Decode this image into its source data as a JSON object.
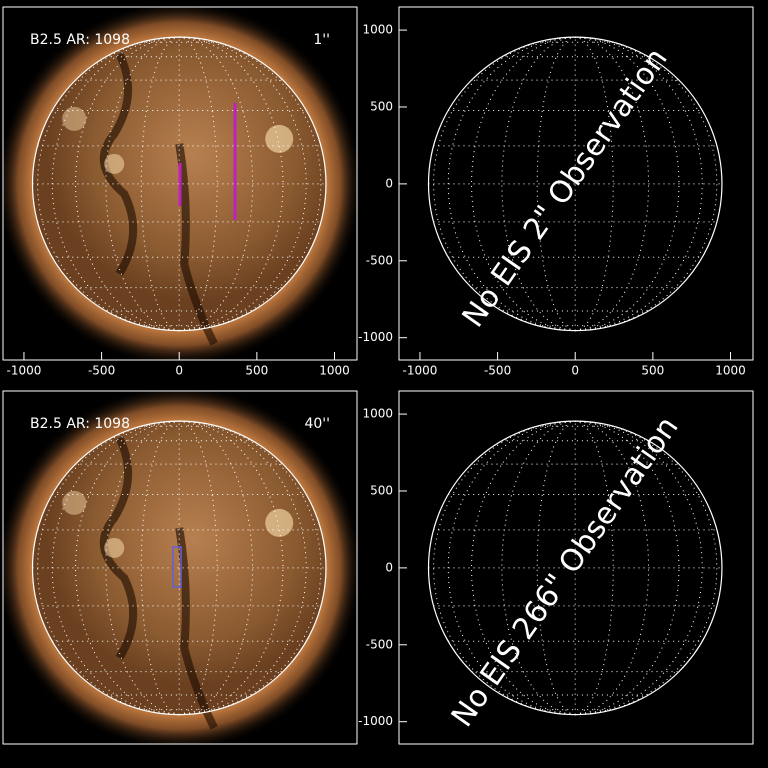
{
  "chart_data": [
    {
      "type": "map",
      "sun_image": true,
      "labels": [
        "B2.5 AR: 1098",
        "1''"
      ],
      "label_colors": [
        "#b0b0b0",
        "#b020b0"
      ],
      "xlim": [
        -1135,
        1145
      ],
      "ylim": [
        -1145,
        1150
      ],
      "xticks": [
        -1000,
        -500,
        0,
        500,
        1000
      ]
    },
    {
      "type": "map",
      "sun_image": false,
      "annotation": "No EIS 2\" Observation",
      "xlim": [
        -1135,
        1145
      ],
      "ylim": [
        -1145,
        1150
      ],
      "xticks": [
        -1000,
        -500,
        0,
        500,
        1000
      ],
      "yticks": [
        -1000,
        -500,
        0,
        500,
        1000
      ]
    },
    {
      "type": "map",
      "sun_image": true,
      "labels": [
        "B2.5 AR: 1098",
        "40''"
      ],
      "label_colors": [
        "#b0b0b0",
        "#6060e0"
      ],
      "xlim": [
        -1135,
        1145
      ],
      "ylim": [
        -1145,
        1150
      ]
    },
    {
      "type": "map",
      "sun_image": false,
      "annotation": "No EIS 266\" Observation",
      "xlim": [
        -1135,
        1145
      ],
      "ylim": [
        -1145,
        1150
      ],
      "yticks": [
        -1000,
        -500,
        0,
        500,
        1000
      ]
    }
  ]
}
